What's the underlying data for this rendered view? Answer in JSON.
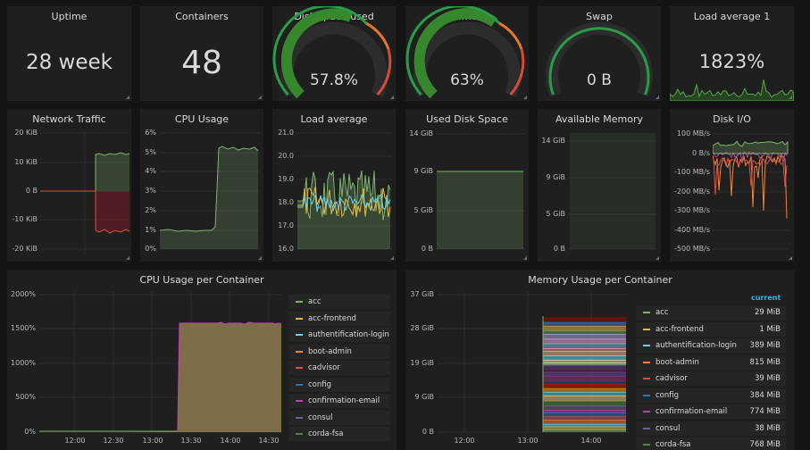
{
  "stats": {
    "uptime": {
      "title": "Uptime",
      "value": "28 week"
    },
    "containers": {
      "title": "Containers",
      "value": "48"
    },
    "disk": {
      "title": "Disk space used",
      "value": "57.8%",
      "fraction": 0.578
    },
    "memory": {
      "title": "Memory",
      "value": "63%",
      "fraction": 0.63
    },
    "swap": {
      "title": "Swap",
      "value": "0 B",
      "fraction": 0
    },
    "load": {
      "title": "Load average 1",
      "value": "1823%"
    }
  },
  "colors": {
    "green": "#37872d",
    "green_line": "#7eb26d",
    "red": "#c4162a",
    "orange": "#e0752d",
    "yellow": "#eab839",
    "blue": "#6ed0e0",
    "accent": "#33b5e5"
  },
  "charts": {
    "network": {
      "title": "Network Traffic",
      "yticks": [
        "20 KiB",
        "10 KiB",
        "0 B",
        "-10 KiB",
        "-20 KiB"
      ]
    },
    "cpu": {
      "title": "CPU Usage",
      "yticks": [
        "6%",
        "5%",
        "4%",
        "3%",
        "2%",
        "1%",
        "0%"
      ]
    },
    "loadavg": {
      "title": "Load average",
      "yticks": [
        "21.0",
        "20.0",
        "19.0",
        "18.0",
        "17.0",
        "16.0"
      ]
    },
    "useddisk": {
      "title": "Used Disk Space",
      "yticks": [
        "14 GiB",
        "9 GiB",
        "5 GiB",
        "0 B"
      ]
    },
    "availmem": {
      "title": "Available Memory",
      "yticks": [
        "14 GiB",
        "9 GiB",
        "5 GiB",
        "0 B"
      ]
    },
    "diskio": {
      "title": "Disk I/O",
      "yticks": [
        "100 MB/s",
        "0 B/s",
        "-100 MB/s",
        "-200 MB/s",
        "-300 MB/s",
        "-400 MB/s",
        "-500 MB/s"
      ]
    }
  },
  "cpu_container": {
    "title": "CPU Usage per Container",
    "yticks": [
      "2000%",
      "1500%",
      "1000%",
      "500%",
      "0%"
    ],
    "xticks": [
      "12:00",
      "12:30",
      "13:00",
      "13:30",
      "14:00",
      "14:30"
    ],
    "legend": [
      "acc",
      "acc-frontend",
      "authentification-login",
      "boot-admin",
      "cadvisor",
      "config",
      "confirmation-email",
      "consul",
      "corda-fsa"
    ]
  },
  "mem_container": {
    "title": "Memory Usage per Container",
    "yticks": [
      "37 GiB",
      "28 GiB",
      "19 GiB",
      "9 GiB",
      "0 B"
    ],
    "xticks": [
      "12:00",
      "13:00",
      "14:00"
    ],
    "legend_header": "current",
    "legend": [
      {
        "name": "acc",
        "value": "29 MiB"
      },
      {
        "name": "acc-frontend",
        "value": "1 MiB"
      },
      {
        "name": "authentification-login",
        "value": "389 MiB"
      },
      {
        "name": "boot-admin",
        "value": "815 MiB"
      },
      {
        "name": "cadvisor",
        "value": "39 MiB"
      },
      {
        "name": "config",
        "value": "384 MiB"
      },
      {
        "name": "confirmation-email",
        "value": "774 MiB"
      },
      {
        "name": "consul",
        "value": "38 MiB"
      },
      {
        "name": "corda-fsa",
        "value": "768 MiB"
      }
    ]
  },
  "legend_colors": [
    "#7eb26d",
    "#eab839",
    "#6ed0e0",
    "#ef843c",
    "#e24d42",
    "#1f78c1",
    "#ba43a9",
    "#705da0",
    "#508642"
  ]
}
